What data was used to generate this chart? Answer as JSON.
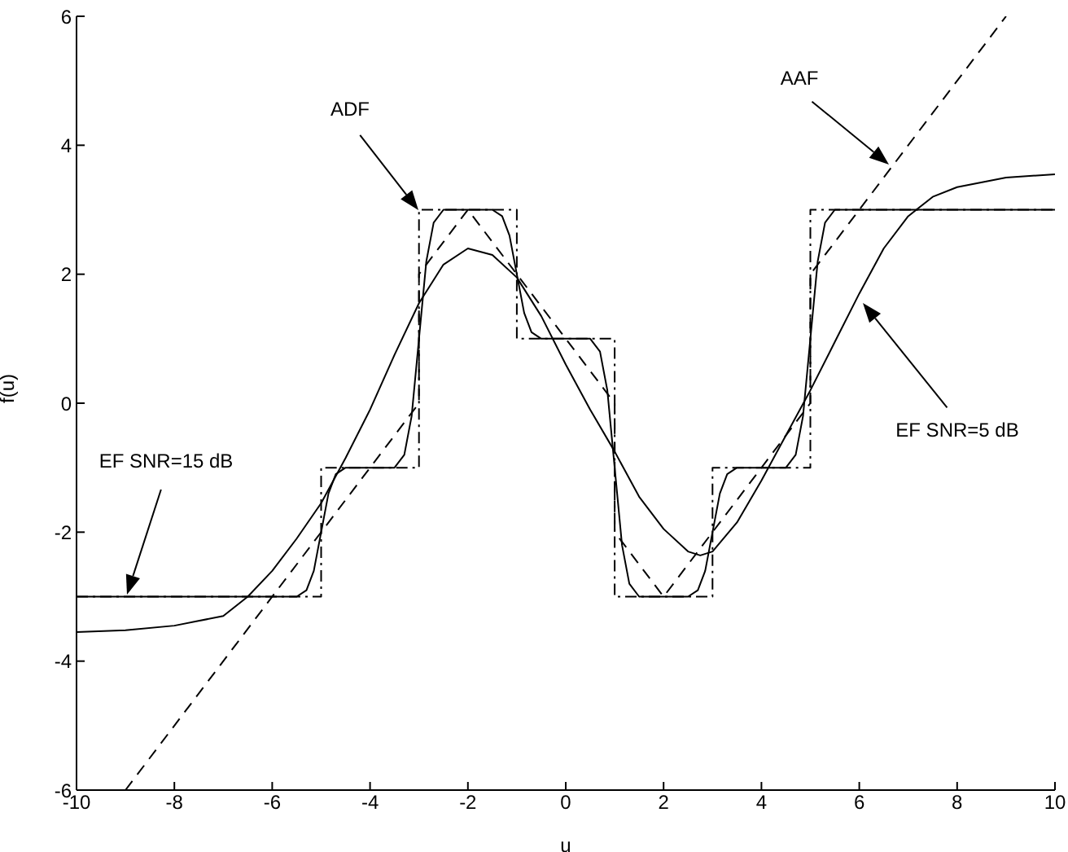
{
  "chart_data": {
    "type": "line",
    "xlabel": "u",
    "ylabel": "f(u)",
    "xlim": [
      -10,
      10
    ],
    "ylim": [
      -6,
      6
    ],
    "xticks": [
      -10,
      -8,
      -6,
      -4,
      -2,
      0,
      2,
      4,
      6,
      8,
      10
    ],
    "yticks": [
      -6,
      -4,
      -2,
      0,
      2,
      4,
      6
    ],
    "grid": false,
    "legend": false,
    "marker": "none",
    "series": [
      {
        "color": "#000000",
        "line_style": "dashdot",
        "x": [
          -10,
          -5,
          -5,
          -3,
          -3,
          -1,
          -1,
          1,
          1,
          3,
          3,
          5,
          5,
          10
        ],
        "values": [
          -3,
          -3,
          -1,
          -1,
          3,
          3,
          1,
          1,
          -3,
          -3,
          -1,
          -1,
          3,
          3
        ]
      },
      {
        "color": "#000000",
        "line_style": "dashed",
        "x": [
          -9,
          -3,
          -3,
          -2,
          1,
          1,
          2,
          5,
          5,
          9
        ],
        "values": [
          -6,
          0,
          2,
          3,
          0,
          -2,
          -3,
          0,
          2,
          6
        ]
      },
      {
        "color": "#000000",
        "line_style": "solid",
        "x": [
          -10,
          -5.5,
          -5.3,
          -5.15,
          -5,
          -4.85,
          -4.7,
          -4.5,
          -3.5,
          -3.3,
          -3.15,
          -3,
          -2.85,
          -2.7,
          -2.5,
          -1.5,
          -1.3,
          -1.15,
          -1,
          -0.85,
          -0.7,
          -0.5,
          0.5,
          0.7,
          0.85,
          1,
          1.15,
          1.3,
          1.5,
          2.5,
          2.7,
          2.85,
          3,
          3.15,
          3.3,
          3.5,
          4.5,
          4.7,
          4.85,
          5,
          5.15,
          5.3,
          5.5,
          10
        ],
        "values": [
          -3,
          -3,
          -2.9,
          -2.6,
          -2,
          -1.4,
          -1.1,
          -1,
          -1,
          -0.8,
          -0.2,
          1,
          2.2,
          2.8,
          3,
          3,
          2.9,
          2.6,
          2,
          1.4,
          1.1,
          1,
          1,
          0.8,
          0.2,
          -1,
          -2.2,
          -2.8,
          -3,
          -3,
          -2.9,
          -2.6,
          -2,
          -1.4,
          -1.1,
          -1,
          -1,
          -0.8,
          -0.2,
          1,
          2.2,
          2.8,
          3,
          3
        ]
      },
      {
        "color": "#000000",
        "line_style": "solid",
        "x": [
          -10,
          -9,
          -8,
          -7,
          -6.5,
          -6,
          -5.5,
          -5,
          -4.5,
          -4,
          -3.5,
          -3,
          -2.5,
          -2,
          -1.5,
          -1,
          -0.5,
          0,
          0.5,
          1,
          1.5,
          2,
          2.5,
          2.75,
          3,
          3.5,
          4,
          4.5,
          5,
          5.5,
          6,
          6.5,
          7,
          7.5,
          8,
          9,
          10
        ],
        "values": [
          -3.55,
          -3.52,
          -3.45,
          -3.3,
          -3.0,
          -2.6,
          -2.1,
          -1.55,
          -0.85,
          -0.1,
          0.75,
          1.55,
          2.15,
          2.4,
          2.3,
          1.95,
          1.35,
          0.6,
          -0.1,
          -0.75,
          -1.45,
          -1.95,
          -2.3,
          -2.36,
          -2.3,
          -1.85,
          -1.2,
          -0.5,
          0.2,
          0.95,
          1.7,
          2.4,
          2.9,
          3.2,
          3.35,
          3.5,
          3.55
        ]
      }
    ],
    "annotations": [
      "ADF",
      "AAF",
      "EF SNR=5 dB",
      "EF SNR=15 dB"
    ]
  }
}
